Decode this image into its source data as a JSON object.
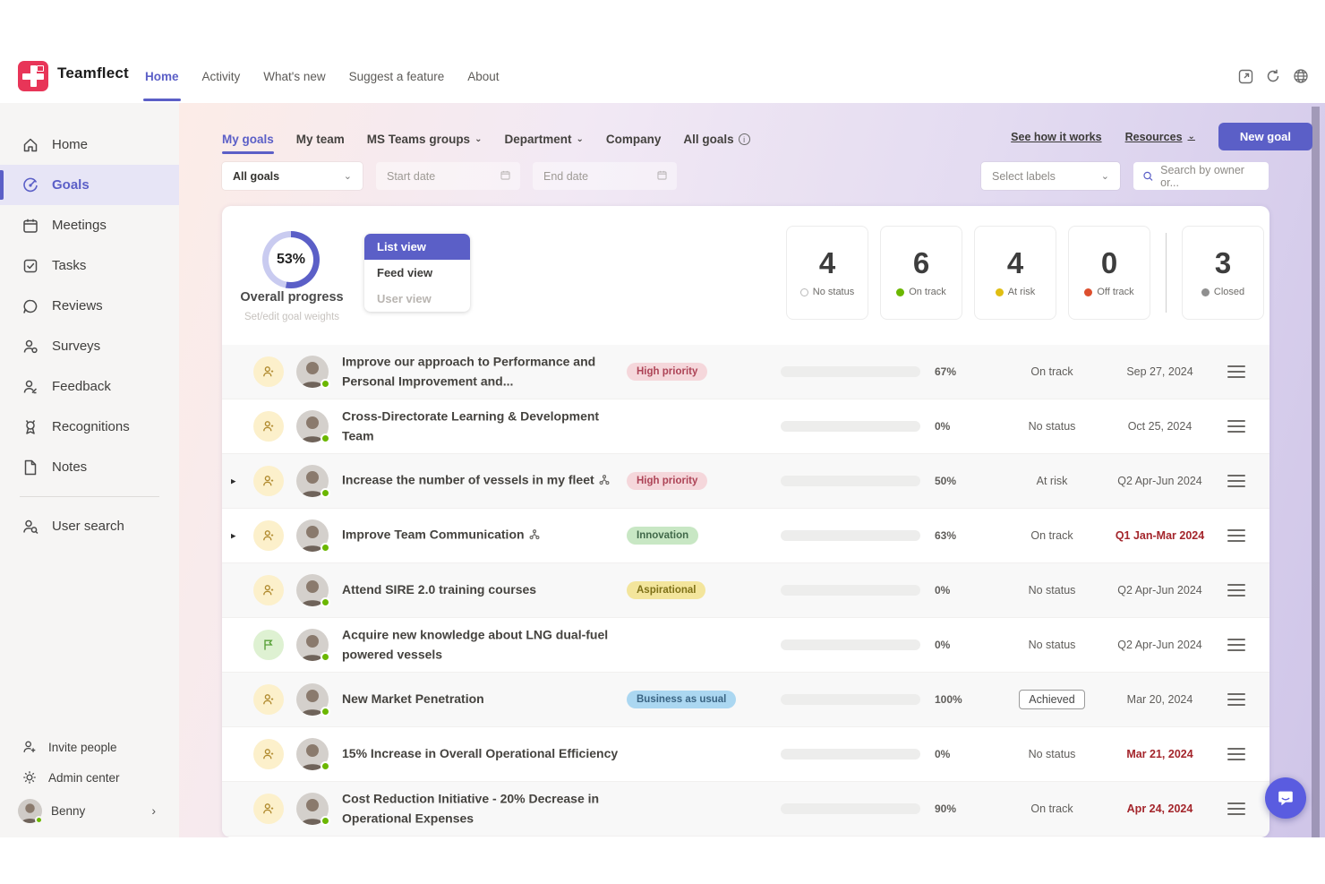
{
  "topbar": {
    "brand": "Teamflect",
    "nav": [
      {
        "label": "Home",
        "active": true
      },
      {
        "label": "Activity"
      },
      {
        "label": "What's new"
      },
      {
        "label": "Suggest a feature"
      },
      {
        "label": "About"
      }
    ]
  },
  "sidebar": {
    "items": [
      {
        "label": "Home"
      },
      {
        "label": "Goals",
        "active": true
      },
      {
        "label": "Meetings"
      },
      {
        "label": "Tasks"
      },
      {
        "label": "Reviews"
      },
      {
        "label": "Surveys"
      },
      {
        "label": "Feedback"
      },
      {
        "label": "Recognitions"
      },
      {
        "label": "Notes"
      }
    ],
    "user_search": "User search",
    "footer": {
      "invite": "Invite people",
      "admin": "Admin center"
    },
    "user": {
      "name": "Benny"
    }
  },
  "goals_header": {
    "tabs": [
      {
        "label": "My goals",
        "active": true
      },
      {
        "label": "My team"
      },
      {
        "label": "MS Teams groups",
        "chevron": true
      },
      {
        "label": "Department",
        "chevron": true
      },
      {
        "label": "Company"
      },
      {
        "label": "All goals",
        "info": true
      }
    ],
    "see_how_link": "See how it works",
    "resources_link": "Resources",
    "new_goal_button": "New goal",
    "filters": {
      "goal_filter_value": "All goals",
      "start_date_placeholder": "Start date",
      "end_date_placeholder": "End date",
      "labels_placeholder": "Select labels",
      "search_placeholder": "Search by owner or..."
    }
  },
  "summary": {
    "overall": {
      "percent_value": 53,
      "percent_label": "53%",
      "label": "Overall progress",
      "sublabel": "Set/edit goal weights"
    },
    "views": [
      {
        "label": "List view",
        "active": true
      },
      {
        "label": "Feed view"
      },
      {
        "label": "User view",
        "dim": true
      }
    ],
    "statuses": [
      {
        "count": "4",
        "label": "No status",
        "dot": "hollow"
      },
      {
        "count": "6",
        "label": "On track",
        "dot": "#6bb700"
      },
      {
        "count": "4",
        "label": "At risk",
        "dot": "#e0be12"
      },
      {
        "count": "0",
        "label": "Off track",
        "dot": "#dd4f2e"
      },
      {
        "count": "3",
        "label": "Closed",
        "dot": "#8f8f8f",
        "divider_before": true
      }
    ]
  },
  "goals": {
    "rows": [
      {
        "title": "Improve our approach to Performance and Personal Improvement and...",
        "type": "person",
        "badge": {
          "text": "High priority",
          "bg": "#f5d7db",
          "color": "#ad4356"
        },
        "progress": 67,
        "bar_color": "#6bb700",
        "percent": "67%",
        "status": "On track",
        "date": "Sep 27, 2024",
        "date_red": false
      },
      {
        "title": "Cross-Directorate Learning & Development Team",
        "type": "person",
        "badge": null,
        "progress": 0,
        "bar_color": "#6bb700",
        "percent": "0%",
        "status": "No status",
        "date": "Oct 25, 2024",
        "date_red": false
      },
      {
        "title": "Increase the number of vessels in my fleet",
        "type": "person",
        "expand": true,
        "link_icon": true,
        "badge": {
          "text": "High priority",
          "bg": "#f5d7db",
          "color": "#ad4356"
        },
        "progress": 50,
        "bar_color": "#e0be12",
        "percent": "50%",
        "status": "At risk",
        "date": "Q2 Apr-Jun 2024",
        "date_red": false
      },
      {
        "title": "Improve Team Communication",
        "type": "person",
        "expand": true,
        "link_icon": true,
        "badge": {
          "text": "Innovation",
          "bg": "#c8e7c4",
          "color": "#41694a"
        },
        "progress": 63,
        "bar_color": "#6bb700",
        "percent": "63%",
        "status": "On track",
        "date": "Q1 Jan-Mar 2024",
        "date_red": true
      },
      {
        "title": "Attend SIRE 2.0 training courses",
        "type": "person",
        "badge": {
          "text": "Aspirational",
          "bg": "#f3e59c",
          "color": "#7f7118"
        },
        "progress": 0,
        "bar_color": "#6bb700",
        "percent": "0%",
        "status": "No status",
        "date": "Q2 Apr-Jun 2024",
        "date_red": false
      },
      {
        "title": "Acquire new knowledge about LNG dual-fuel powered vessels",
        "type": "learning",
        "badge": null,
        "progress": 0,
        "bar_color": "#6bb700",
        "percent": "0%",
        "status": "No status",
        "date": "Q2 Apr-Jun 2024",
        "date_red": false
      },
      {
        "title": "New Market Penetration",
        "type": "person",
        "badge": {
          "text": "Business as usual",
          "bg": "#abd7f1",
          "color": "#3a6483"
        },
        "progress": 100,
        "bar_color": "#6bb700",
        "percent": "100%",
        "status": "Achieved",
        "status_achieved": true,
        "date": "Mar 20, 2024",
        "date_red": false
      },
      {
        "title": "15% Increase in Overall Operational Efficiency",
        "type": "person",
        "badge": null,
        "progress": 0,
        "bar_color": "#6bb700",
        "percent": "0%",
        "status": "No status",
        "date": "Mar 21, 2024",
        "date_red": true
      },
      {
        "title": "Cost Reduction Initiative - 20% Decrease in Operational Expenses",
        "type": "person",
        "badge": null,
        "progress": 90,
        "bar_color": "#6bb700",
        "percent": "90%",
        "status": "On track",
        "date": "Apr 24, 2024",
        "date_red": true
      }
    ]
  },
  "colors": {
    "accent": "#5b5fc7",
    "logo_red": "#e83558",
    "green": "#6bb700",
    "yellow": "#e0be12",
    "red": "#dd4f2e",
    "date_red": "#a4262c"
  }
}
